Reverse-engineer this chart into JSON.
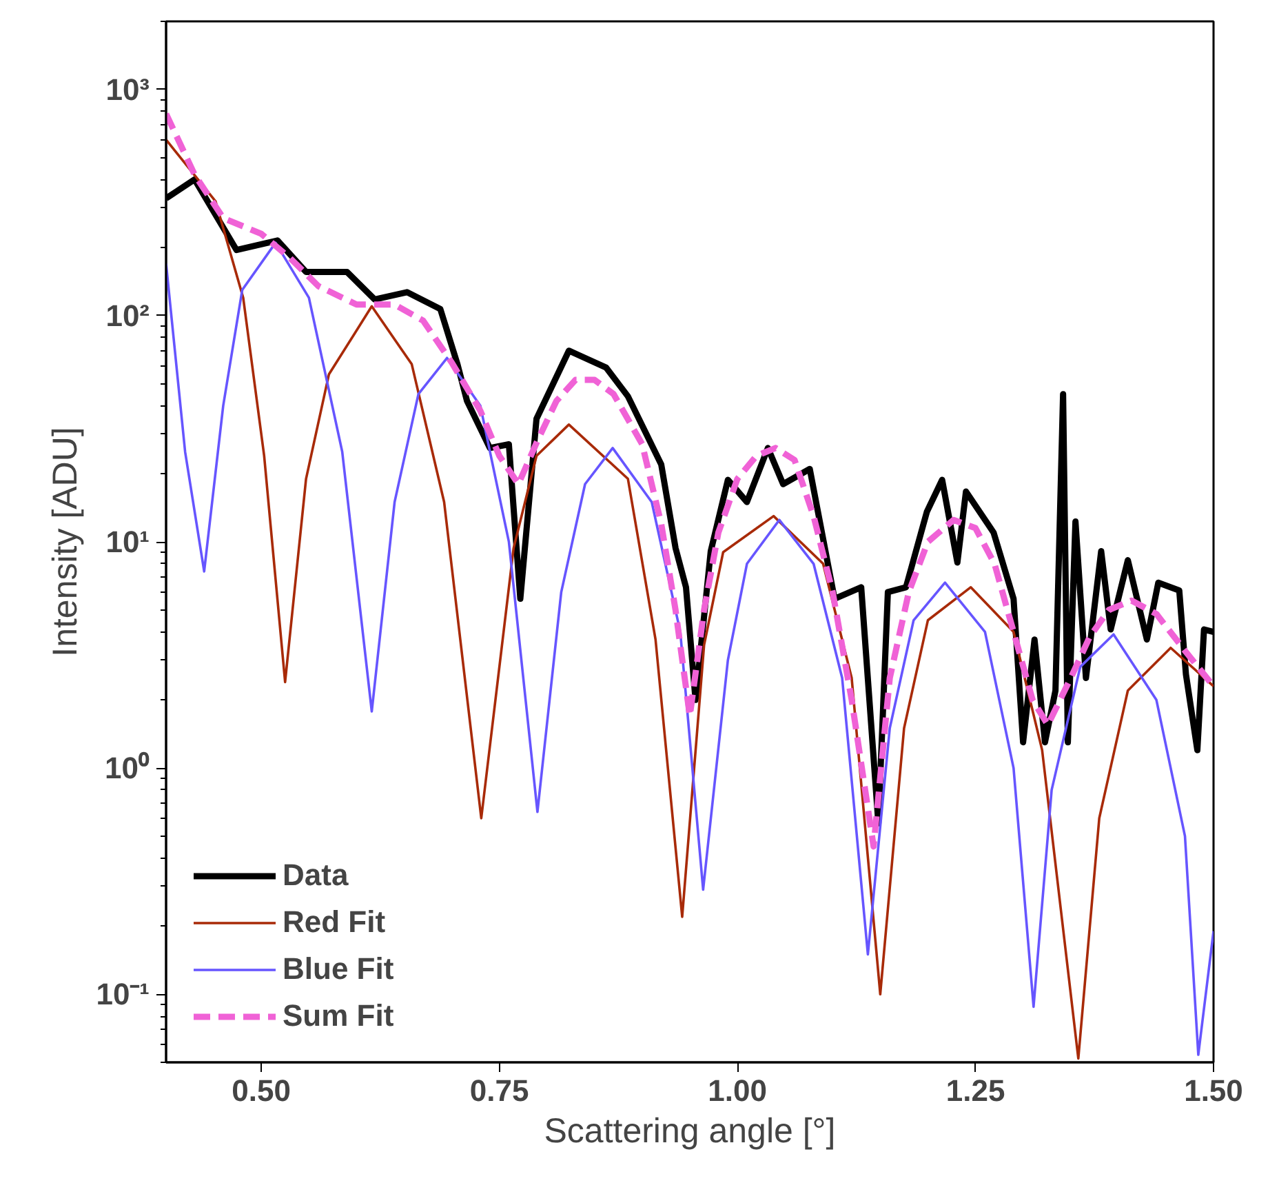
{
  "chart_data": {
    "type": "line",
    "xlabel": "Scattering angle [°]",
    "ylabel": "Intensity [ADU]",
    "log": "y",
    "grid": false,
    "legend": "bottom left",
    "xlim": [
      0.4,
      1.5
    ],
    "xticks": [
      {
        "value": 0.5,
        "label": "0.50"
      },
      {
        "value": 0.75,
        "label": "0.75"
      },
      {
        "value": 1.0,
        "label": "1.00"
      },
      {
        "value": 1.25,
        "label": "1.25"
      },
      {
        "value": 1.5,
        "label": "1.50"
      }
    ],
    "ylim": [
      0.05,
      2000
    ],
    "yticks": [
      {
        "value": 0.1,
        "label": "10⁻¹"
      },
      {
        "value": 1,
        "label": "10⁰"
      },
      {
        "value": 10,
        "label": "10¹"
      },
      {
        "value": 100,
        "label": "10²"
      },
      {
        "value": 1000,
        "label": "10³"
      }
    ],
    "series": [
      {
        "name": "Data",
        "color": "#000000",
        "line_style": "solid",
        "x": [
          0.4,
          0.43,
          0.474,
          0.517,
          0.547,
          0.59,
          0.619,
          0.653,
          0.688,
          0.706,
          0.716,
          0.74,
          0.76,
          0.772,
          0.789,
          0.823,
          0.862,
          0.885,
          0.92,
          0.935,
          0.946,
          0.956,
          0.972,
          0.99,
          1.01,
          1.032,
          1.048,
          1.076,
          1.102,
          1.13,
          1.148,
          1.158,
          1.177,
          1.199,
          1.215,
          1.231,
          1.24,
          1.269,
          1.29,
          1.3,
          1.312,
          1.323,
          1.334,
          1.342,
          1.347,
          1.355,
          1.366,
          1.382,
          1.392,
          1.41,
          1.43,
          1.442,
          1.464,
          1.471,
          1.483,
          1.49,
          1.5
        ],
        "values": [
          330,
          400,
          195,
          215,
          156,
          156,
          118,
          127,
          107,
          61,
          42,
          26,
          27,
          5.6,
          35,
          70,
          59,
          44,
          22,
          9.4,
          6.3,
          2.0,
          9.1,
          18.8,
          15,
          26,
          18,
          21,
          5.6,
          6.3,
          0.57,
          6,
          6.3,
          13.6,
          18.8,
          8.1,
          16.7,
          11,
          5.6,
          1.3,
          3.7,
          1.3,
          2.2,
          45,
          1.3,
          12.3,
          2.5,
          9.1,
          4.1,
          8.3,
          3.7,
          6.6,
          6.1,
          2.6,
          1.2,
          4.1,
          4
        ]
      },
      {
        "name": "Red Fit",
        "color": "#a82a08",
        "line_style": "solid",
        "x": [
          0.4,
          0.452,
          0.481,
          0.503,
          0.525,
          0.547,
          0.571,
          0.616,
          0.658,
          0.692,
          0.731,
          0.765,
          0.789,
          0.823,
          0.885,
          0.914,
          0.942,
          0.965,
          0.985,
          1.038,
          1.09,
          1.12,
          1.15,
          1.175,
          1.2,
          1.245,
          1.29,
          1.32,
          1.358,
          1.38,
          1.41,
          1.455,
          1.5
        ],
        "values": [
          600,
          320,
          120,
          24,
          2.4,
          19,
          55,
          110,
          61,
          15,
          0.6,
          9.4,
          24,
          33,
          19,
          3.7,
          0.22,
          3.5,
          9,
          13,
          8,
          2.5,
          0.1,
          1.5,
          4.5,
          6.3,
          4,
          1.2,
          0.052,
          0.6,
          2.2,
          3.4,
          2.3
        ]
      },
      {
        "name": "Blue Fit",
        "color": "#6655ff",
        "line_style": "solid",
        "x": [
          0.4,
          0.42,
          0.44,
          0.46,
          0.48,
          0.515,
          0.55,
          0.585,
          0.616,
          0.64,
          0.665,
          0.695,
          0.73,
          0.76,
          0.79,
          0.815,
          0.84,
          0.869,
          0.91,
          0.94,
          0.964,
          0.99,
          1.01,
          1.044,
          1.08,
          1.11,
          1.137,
          1.16,
          1.185,
          1.218,
          1.26,
          1.29,
          1.311,
          1.33,
          1.36,
          1.395,
          1.44,
          1.47,
          1.484,
          1.5
        ],
        "values": [
          170,
          25,
          7.4,
          40,
          130,
          210,
          120,
          25,
          1.78,
          15,
          45,
          65,
          40,
          10,
          0.64,
          6,
          18,
          26,
          15,
          4,
          0.29,
          3,
          8,
          12.5,
          8,
          2.5,
          0.15,
          1.5,
          4.5,
          6.6,
          4,
          1,
          0.088,
          0.8,
          2.8,
          3.9,
          2,
          0.5,
          0.054,
          0.19
        ]
      },
      {
        "name": "Sum Fit",
        "color": "#f062d6",
        "line_style": "dashed",
        "x": [
          0.4,
          0.43,
          0.46,
          0.5,
          0.53,
          0.56,
          0.6,
          0.64,
          0.67,
          0.7,
          0.73,
          0.75,
          0.77,
          0.79,
          0.81,
          0.83,
          0.85,
          0.87,
          0.9,
          0.92,
          0.935,
          0.95,
          0.965,
          0.98,
          1.0,
          1.02,
          1.04,
          1.06,
          1.08,
          1.1,
          1.12,
          1.143,
          1.16,
          1.18,
          1.2,
          1.227,
          1.25,
          1.27,
          1.29,
          1.31,
          1.326,
          1.35,
          1.37,
          1.39,
          1.414,
          1.44,
          1.47,
          1.5
        ],
        "values": [
          780,
          420,
          270,
          230,
          180,
          135,
          112,
          112,
          95,
          62,
          38,
          24,
          18,
          28,
          42,
          52,
          52,
          45,
          27,
          12,
          5,
          1.7,
          5,
          11,
          19,
          24,
          26,
          23,
          13,
          6,
          2,
          0.45,
          2.5,
          6,
          10,
          12.5,
          11.5,
          8,
          4,
          2,
          1.55,
          2.5,
          3.8,
          5,
          5.5,
          4.8,
          3.3,
          2.3
        ]
      }
    ]
  }
}
